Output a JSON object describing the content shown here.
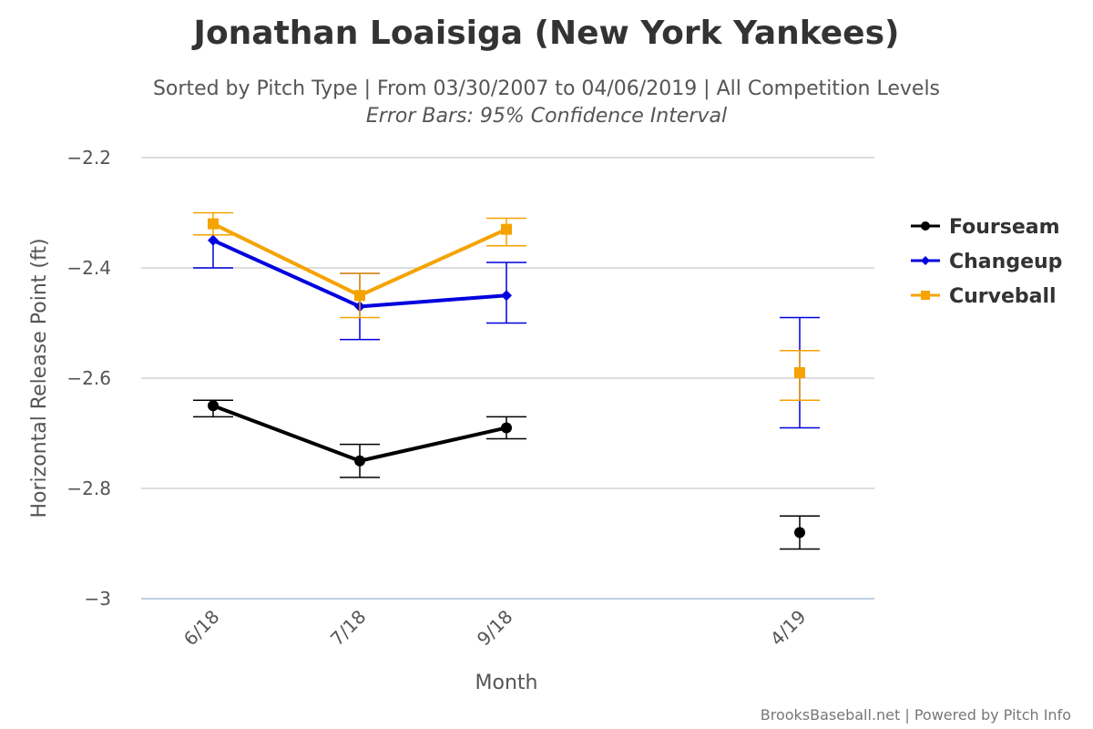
{
  "chart_data": {
    "type": "line",
    "title": "Jonathan Loaisiga (New York Yankees)",
    "subtitle": "Sorted by Pitch Type | From 03/30/2007 to 04/06/2019 | All Competition Levels",
    "subtitle2": "Error Bars: 95% Confidence Interval",
    "xlabel": "Month",
    "ylabel": "Horizontal Release Point (ft)",
    "categories": [
      "6/18",
      "7/18",
      "9/18",
      "4/19"
    ],
    "x_index": [
      0,
      1,
      2,
      4
    ],
    "ylim": [
      -3,
      -2.2
    ],
    "yticks": [
      -2.2,
      -2.4,
      -2.6,
      -2.8,
      -3
    ],
    "ytick_labels": [
      "−2.2",
      "−2.4",
      "−2.6",
      "−2.8",
      "−3"
    ],
    "grid": true,
    "legend_position": "right",
    "series": [
      {
        "name": "Fourseam",
        "color": "#000000",
        "marker": "circle",
        "values": [
          -2.65,
          -2.75,
          -2.69,
          -2.88
        ],
        "err_low": [
          -2.67,
          -2.78,
          -2.71,
          -2.91
        ],
        "err_high": [
          -2.64,
          -2.72,
          -2.67,
          -2.85
        ]
      },
      {
        "name": "Changeup",
        "color": "#0000dd",
        "marker": "diamond",
        "values": [
          -2.35,
          -2.47,
          -2.45,
          -2.59
        ],
        "err_low": [
          -2.4,
          -2.53,
          -2.5,
          -2.69
        ],
        "err_high": [
          -2.34,
          -2.41,
          -2.39,
          -2.49
        ]
      },
      {
        "name": "Curveball",
        "color": "#f5a300",
        "marker": "square",
        "values": [
          -2.32,
          -2.45,
          -2.33,
          -2.59
        ],
        "err_low": [
          -2.34,
          -2.49,
          -2.36,
          -2.64
        ],
        "err_high": [
          -2.3,
          -2.41,
          -2.31,
          -2.55
        ]
      }
    ],
    "credit": "BrooksBaseball.net | Powered by Pitch Info"
  }
}
